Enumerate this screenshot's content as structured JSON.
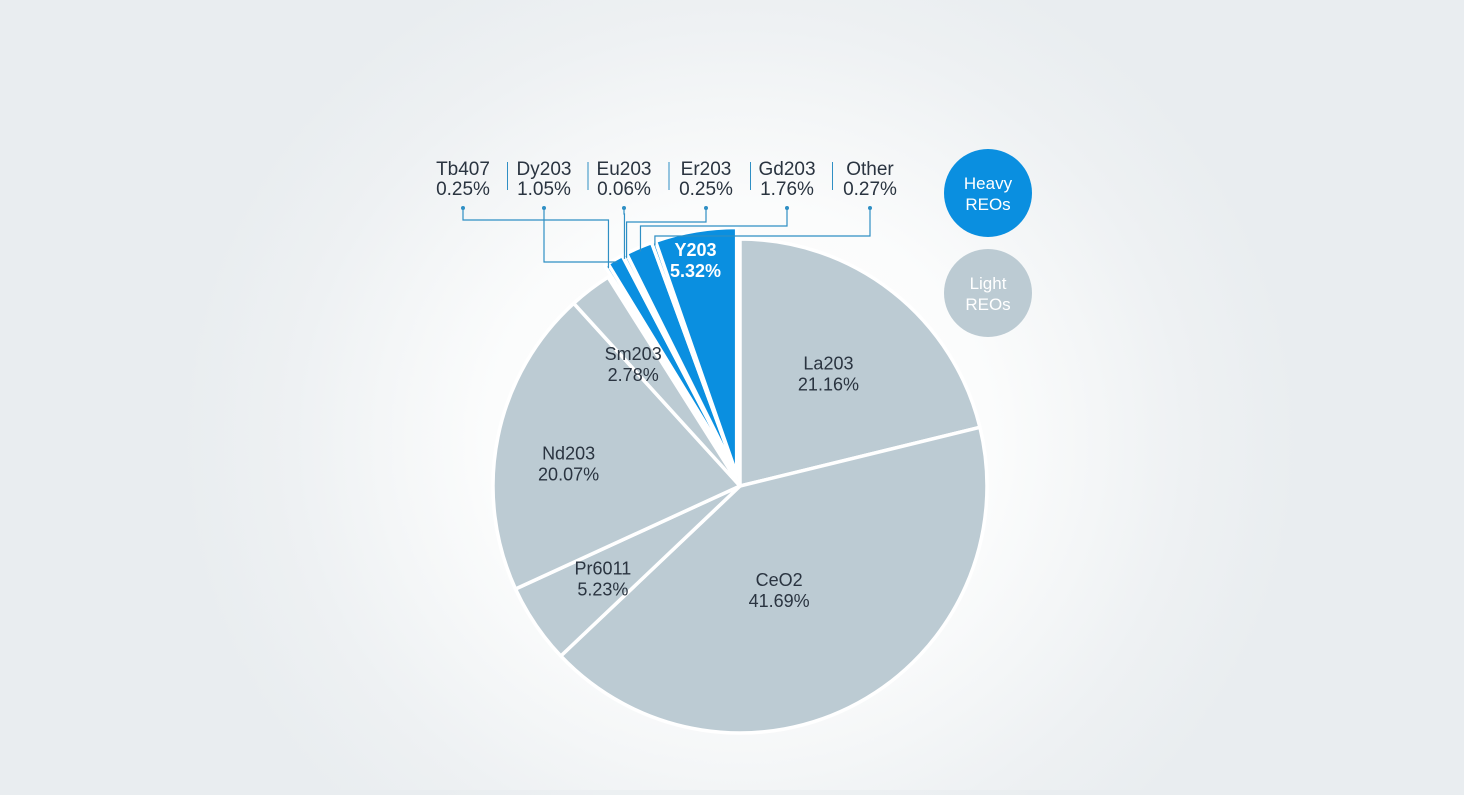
{
  "chart_data": {
    "type": "pie",
    "title": "",
    "slices": [
      {
        "name": "La203",
        "value": 21.16,
        "group": "light"
      },
      {
        "name": "CeO2",
        "value": 41.69,
        "group": "light"
      },
      {
        "name": "Pr6011",
        "value": 5.23,
        "group": "light"
      },
      {
        "name": "Nd203",
        "value": 20.07,
        "group": "light"
      },
      {
        "name": "Sm203",
        "value": 2.78,
        "group": "light"
      },
      {
        "name": "Tb407",
        "value": 0.25,
        "group": "heavy"
      },
      {
        "name": "Dy203",
        "value": 1.05,
        "group": "heavy"
      },
      {
        "name": "Eu203",
        "value": 0.06,
        "group": "heavy"
      },
      {
        "name": "Er203",
        "value": 0.25,
        "group": "heavy"
      },
      {
        "name": "Gd203",
        "value": 1.76,
        "group": "heavy"
      },
      {
        "name": "Other",
        "value": 0.27,
        "group": "heavy"
      },
      {
        "name": "Y203",
        "value": 5.32,
        "group": "heavy"
      }
    ],
    "legend": [
      {
        "label_line1": "Heavy",
        "label_line2": "REOs",
        "group": "heavy"
      },
      {
        "label_line1": "Light",
        "label_line2": "REOs",
        "group": "light"
      }
    ],
    "legend_placement": "top-right",
    "colors": {
      "heavy": "#0a8fe0",
      "light": "#bccbd3",
      "callout_line": "#2f8fc4",
      "label_text": "#2a3440"
    }
  }
}
